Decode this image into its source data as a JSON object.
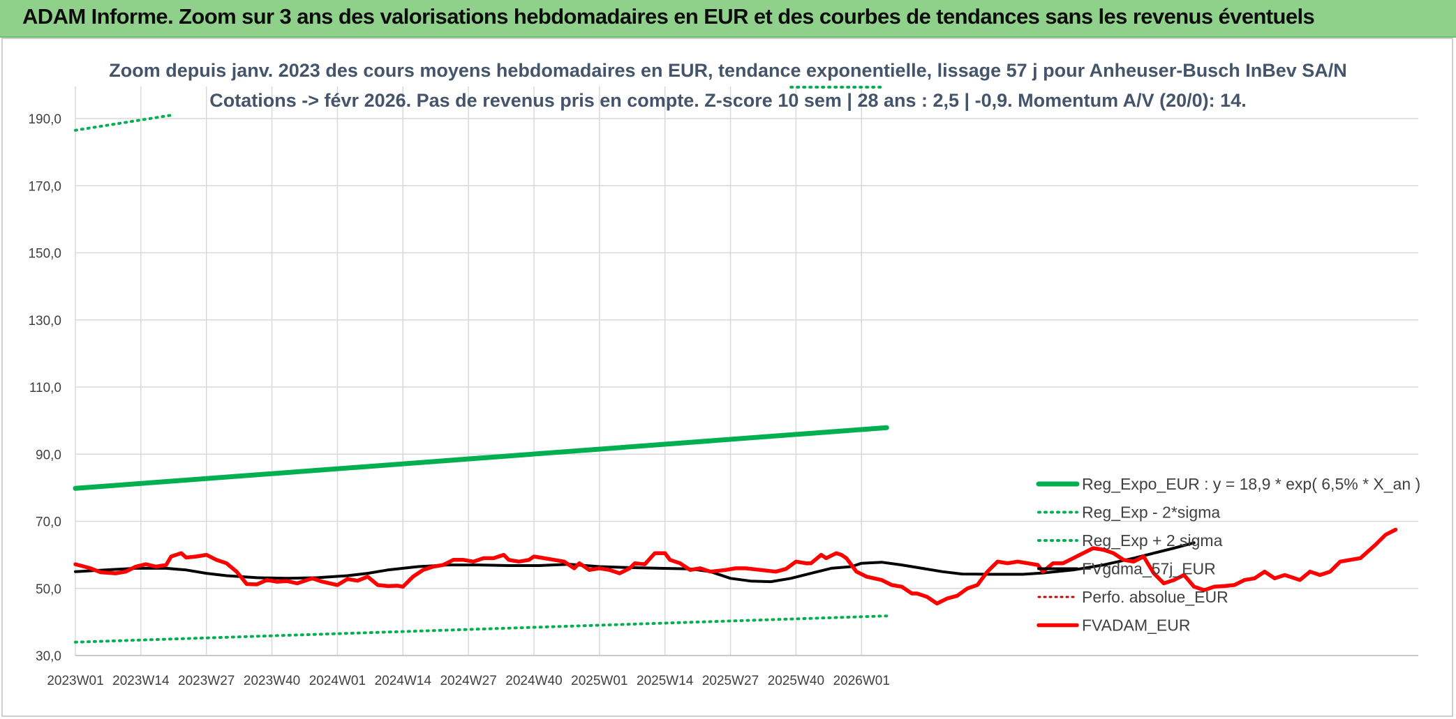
{
  "banner": {
    "title": "ADAM Informe. Zoom sur 3 ans des valorisations hebdomadaires en EUR et des courbes de tendances sans les revenus éventuels"
  },
  "chart_data": {
    "type": "line",
    "title": "Zoom depuis janv. 2023 des cours moyens hebdomadaires en EUR, tendance exponentielle, lissage 57 j pour Anheuser-Busch InBev SA/N",
    "subtitle": "Cotations -> févr 2026. Pas de revenus pris en compte. Z-score 10 sem | 28 ans : 2,5 | -0,9. Momentum A/V (20/0): 14.",
    "ylim": [
      30,
      190
    ],
    "y_ticks": [
      "30,0",
      "50,0",
      "70,0",
      "90,0",
      "110,0",
      "130,0",
      "150,0",
      "170,0",
      "190,0"
    ],
    "x_ticks": [
      "2023W01",
      "2023W14",
      "2023W27",
      "2023W40",
      "2024W01",
      "2024W14",
      "2024W27",
      "2024W40",
      "2025W01",
      "2025W14",
      "2025W27",
      "2025W40",
      "2026W01"
    ],
    "grid": true,
    "legend_position": "right",
    "colors": {
      "reg_expo": "#00b050",
      "sigma": "#00b050",
      "fvgdma": "#000000",
      "perfo": "#c00000",
      "fvadam": "#ff0000"
    },
    "series": [
      {
        "name": "Reg_Expo_EUR : y = 18,9 * exp( 6,5% *  X_an )",
        "style": "solid-thick",
        "values": [
          [
            0,
            79.8
          ],
          [
            161,
            97.9
          ]
        ]
      },
      {
        "name": "Reg_Exp - 2*sigma",
        "style": "dotted",
        "values": [
          [
            0,
            34.0
          ],
          [
            161,
            41.8
          ]
        ]
      },
      {
        "name": "Reg_Exp + 2 sigma",
        "style": "dotted",
        "values": [
          [
            0,
            186.5
          ],
          [
            19,
            191.0
          ],
          [
            142,
            199.0
          ],
          [
            160,
            199.0
          ]
        ]
      },
      {
        "name": "FVgdma_57j_EUR",
        "style": "solid",
        "values": [
          [
            0,
            55.0
          ],
          [
            6,
            55.5
          ],
          [
            12,
            56.0
          ],
          [
            18,
            56.0
          ],
          [
            22,
            55.5
          ],
          [
            26,
            54.5
          ],
          [
            30,
            53.8
          ],
          [
            36,
            53.2
          ],
          [
            42,
            53.0
          ],
          [
            48,
            53.2
          ],
          [
            54,
            53.8
          ],
          [
            58,
            54.5
          ],
          [
            62,
            55.5
          ],
          [
            68,
            56.5
          ],
          [
            74,
            57.0
          ],
          [
            80,
            57.0
          ],
          [
            86,
            56.8
          ],
          [
            92,
            56.8
          ],
          [
            98,
            57.2
          ],
          [
            104,
            56.5
          ],
          [
            110,
            56.2
          ],
          [
            116,
            56.0
          ],
          [
            122,
            55.8
          ],
          [
            126,
            55.0
          ],
          [
            130,
            53.0
          ],
          [
            134,
            52.2
          ],
          [
            138,
            52.0
          ],
          [
            142,
            53.0
          ],
          [
            146,
            54.5
          ],
          [
            150,
            56.0
          ],
          [
            154,
            56.5
          ],
          [
            156,
            57.5
          ],
          [
            160,
            57.8
          ],
          [
            164,
            57.0
          ],
          [
            168,
            56.0
          ],
          [
            172,
            55.0
          ],
          [
            176,
            54.3
          ],
          [
            182,
            54.2
          ],
          [
            188,
            54.2
          ],
          [
            192,
            54.6
          ],
          [
            198,
            55.5
          ],
          [
            204,
            57.0
          ],
          [
            210,
            59.0
          ],
          [
            214,
            60.5
          ],
          [
            218,
            62.0
          ],
          [
            222,
            63.6
          ]
        ]
      },
      {
        "name": "Perfo. absolue_EUR",
        "style": "dotted",
        "values": []
      },
      {
        "name": "FVADAM_EUR",
        "style": "solid-thick",
        "values": [
          [
            0,
            57.2
          ],
          [
            3,
            56.0
          ],
          [
            5,
            54.8
          ],
          [
            8,
            54.5
          ],
          [
            10,
            55.0
          ],
          [
            12,
            56.5
          ],
          [
            14,
            57.2
          ],
          [
            16,
            56.5
          ],
          [
            18,
            57.0
          ],
          [
            19,
            59.5
          ],
          [
            21,
            60.5
          ],
          [
            22,
            59.2
          ],
          [
            24,
            59.5
          ],
          [
            26,
            60.0
          ],
          [
            28,
            58.5
          ],
          [
            30,
            57.5
          ],
          [
            32,
            55.0
          ],
          [
            34,
            51.3
          ],
          [
            36,
            51.2
          ],
          [
            38,
            52.5
          ],
          [
            40,
            52.0
          ],
          [
            42,
            52.2
          ],
          [
            44,
            51.5
          ],
          [
            47,
            53.0
          ],
          [
            49,
            52.0
          ],
          [
            52,
            51.0
          ],
          [
            54,
            52.8
          ],
          [
            56,
            52.3
          ],
          [
            58,
            53.5
          ],
          [
            60,
            51.0
          ],
          [
            62,
            50.7
          ],
          [
            64,
            50.8
          ],
          [
            65,
            50.5
          ],
          [
            67,
            53.5
          ],
          [
            69,
            55.5
          ],
          [
            71,
            56.5
          ],
          [
            73,
            57.0
          ],
          [
            75,
            58.5
          ],
          [
            77,
            58.5
          ],
          [
            79,
            58.0
          ],
          [
            81,
            59.0
          ],
          [
            83,
            59.0
          ],
          [
            85,
            60.0
          ],
          [
            86,
            58.5
          ],
          [
            88,
            58.0
          ],
          [
            90,
            58.5
          ],
          [
            91,
            59.5
          ],
          [
            93,
            59.0
          ],
          [
            95,
            58.5
          ],
          [
            97,
            58.0
          ],
          [
            99,
            56.0
          ],
          [
            100,
            57.5
          ],
          [
            102,
            55.5
          ],
          [
            104,
            56.0
          ],
          [
            106,
            55.5
          ],
          [
            108,
            54.5
          ],
          [
            110,
            56.0
          ],
          [
            111,
            57.5
          ],
          [
            113,
            57.2
          ],
          [
            115,
            60.5
          ],
          [
            117,
            60.5
          ],
          [
            118,
            58.5
          ],
          [
            120,
            57.5
          ],
          [
            122,
            55.5
          ],
          [
            124,
            56.0
          ],
          [
            126,
            55.0
          ],
          [
            129,
            55.5
          ],
          [
            131,
            56.0
          ],
          [
            133,
            56.0
          ],
          [
            136,
            55.5
          ],
          [
            139,
            55.0
          ],
          [
            141,
            55.8
          ],
          [
            143,
            58.0
          ],
          [
            145,
            57.5
          ],
          [
            146,
            57.5
          ],
          [
            148,
            60.0
          ],
          [
            149,
            59.0
          ],
          [
            151,
            60.5
          ],
          [
            152,
            60.0
          ],
          [
            153,
            59.0
          ],
          [
            155,
            55.0
          ],
          [
            157,
            53.5
          ],
          [
            160,
            52.5
          ],
          [
            162,
            51.0
          ],
          [
            164,
            50.5
          ],
          [
            166,
            48.5
          ],
          [
            167,
            48.5
          ],
          [
            169,
            47.5
          ],
          [
            171,
            45.5
          ],
          [
            173,
            47.0
          ],
          [
            175,
            47.8
          ],
          [
            177,
            50.0
          ],
          [
            179,
            51.0
          ],
          [
            181,
            55.0
          ],
          [
            183,
            58.0
          ],
          [
            185,
            57.5
          ],
          [
            187,
            58.0
          ],
          [
            189,
            57.5
          ],
          [
            191,
            57.0
          ],
          [
            192,
            55.0
          ],
          [
            194,
            57.5
          ],
          [
            196,
            57.5
          ],
          [
            198,
            59.0
          ],
          [
            200,
            60.5
          ],
          [
            202,
            62.0
          ],
          [
            204,
            61.5
          ],
          [
            206,
            60.5
          ],
          [
            208,
            58.5
          ],
          [
            210,
            58.0
          ],
          [
            212,
            59.5
          ],
          [
            214,
            54.5
          ],
          [
            216,
            51.5
          ],
          [
            218,
            52.5
          ],
          [
            220,
            54.0
          ],
          [
            222,
            50.5
          ],
          [
            224,
            49.5
          ],
          [
            226,
            50.5
          ],
          [
            228,
            50.7
          ],
          [
            230,
            51.0
          ],
          [
            232,
            52.5
          ],
          [
            234,
            53.0
          ],
          [
            236,
            55.0
          ],
          [
            238,
            53.0
          ],
          [
            240,
            54.0
          ],
          [
            243,
            52.5
          ],
          [
            245,
            55.0
          ],
          [
            247,
            54.0
          ],
          [
            249,
            55.0
          ],
          [
            251,
            58.0
          ],
          [
            253,
            58.5
          ],
          [
            255,
            59.0
          ],
          [
            258,
            63.0
          ],
          [
            260,
            66.0
          ],
          [
            262,
            67.5
          ]
        ]
      }
    ]
  }
}
